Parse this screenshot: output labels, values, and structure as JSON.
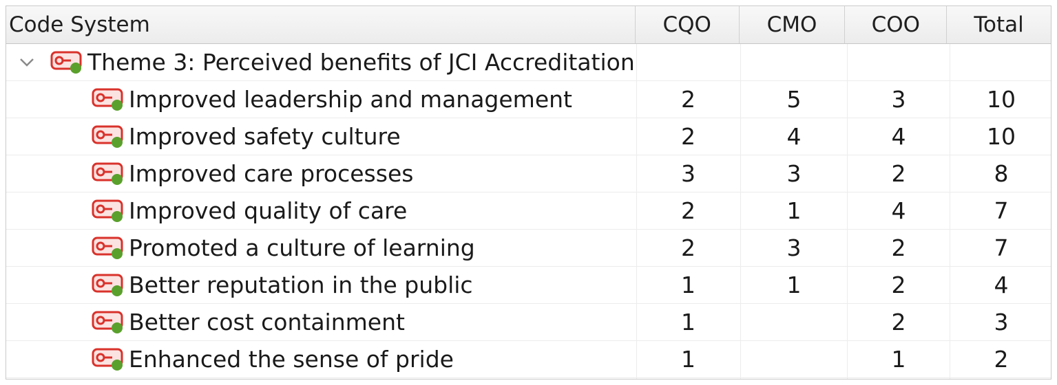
{
  "table": {
    "columns": {
      "code_system": "Code System",
      "cqo": "CQO",
      "cmo": "CMO",
      "coo": "COO",
      "total": "Total"
    },
    "theme": {
      "label": "Theme 3: Perceived benefits of JCI Accreditation",
      "expanded": true,
      "icon": "code-icon"
    },
    "rows": [
      {
        "label": "Improved leadership and management",
        "cqo": "2",
        "cmo": "5",
        "coo": "3",
        "total": "10"
      },
      {
        "label": "Improved safety culture",
        "cqo": "2",
        "cmo": "4",
        "coo": "4",
        "total": "10"
      },
      {
        "label": "Improved care processes",
        "cqo": "3",
        "cmo": "3",
        "coo": "2",
        "total": "8"
      },
      {
        "label": "Improved quality of care",
        "cqo": "2",
        "cmo": "1",
        "coo": "4",
        "total": "7"
      },
      {
        "label": "Promoted a culture of learning",
        "cqo": "2",
        "cmo": "3",
        "coo": "2",
        "total": "7"
      },
      {
        "label": "Better reputation in the public",
        "cqo": "1",
        "cmo": "1",
        "coo": "2",
        "total": "4"
      },
      {
        "label": "Better cost containment",
        "cqo": "1",
        "cmo": "",
        "coo": "2",
        "total": "3"
      },
      {
        "label": "Enhanced the sense of pride",
        "cqo": "1",
        "cmo": "",
        "coo": "1",
        "total": "2"
      }
    ]
  },
  "colors": {
    "icon_red": "#d9322b",
    "icon_green": "#5aa02c",
    "header_bg": "#f0f0f0",
    "grid_line": "#ececec"
  }
}
